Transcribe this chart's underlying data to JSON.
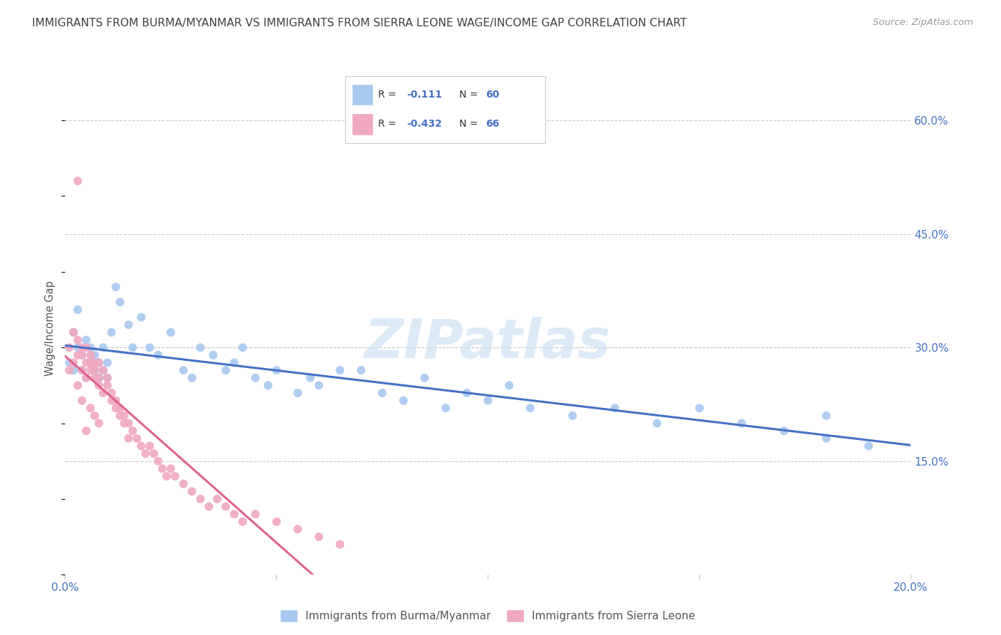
{
  "title": "IMMIGRANTS FROM BURMA/MYANMAR VS IMMIGRANTS FROM SIERRA LEONE WAGE/INCOME GAP CORRELATION CHART",
  "source": "Source: ZipAtlas.com",
  "ylabel": "Wage/Income Gap",
  "watermark": "ZIPatlas",
  "legend_blue_r": "-0.111",
  "legend_blue_n": "60",
  "legend_pink_r": "-0.432",
  "legend_pink_n": "66",
  "legend_blue_label": "Immigrants from Burma/Myanmar",
  "legend_pink_label": "Immigrants from Sierra Leone",
  "xlim": [
    0.0,
    0.2
  ],
  "ylim": [
    0.0,
    0.65
  ],
  "right_yticks": [
    0.15,
    0.3,
    0.45,
    0.6
  ],
  "right_yticklabels": [
    "15.0%",
    "30.0%",
    "45.0%",
    "60.0%"
  ],
  "blue_color": "#a8c8f0",
  "pink_color": "#f0a8c0",
  "blue_line_color": "#4472c4",
  "pink_line_color": "#e06090",
  "grid_color": "#c8c8c8",
  "title_color": "#404040",
  "axis_tick_color": "#4472c4",
  "background_color": "#ffffff",
  "blue_scatter_x": [
    0.001,
    0.002,
    0.002,
    0.003,
    0.003,
    0.004,
    0.004,
    0.005,
    0.005,
    0.006,
    0.006,
    0.007,
    0.007,
    0.008,
    0.008,
    0.009,
    0.009,
    0.01,
    0.01,
    0.011,
    0.012,
    0.013,
    0.015,
    0.016,
    0.018,
    0.02,
    0.022,
    0.025,
    0.028,
    0.03,
    0.032,
    0.035,
    0.038,
    0.04,
    0.042,
    0.045,
    0.048,
    0.05,
    0.055,
    0.058,
    0.06,
    0.065,
    0.07,
    0.075,
    0.08,
    0.085,
    0.09,
    0.095,
    0.1,
    0.105,
    0.11,
    0.12,
    0.13,
    0.14,
    0.15,
    0.16,
    0.17,
    0.18,
    0.18,
    0.19
  ],
  "blue_scatter_y": [
    0.28,
    0.32,
    0.27,
    0.3,
    0.35,
    0.29,
    0.27,
    0.26,
    0.31,
    0.28,
    0.3,
    0.27,
    0.29,
    0.26,
    0.28,
    0.3,
    0.27,
    0.28,
    0.26,
    0.32,
    0.38,
    0.36,
    0.33,
    0.3,
    0.34,
    0.3,
    0.29,
    0.32,
    0.27,
    0.26,
    0.3,
    0.29,
    0.27,
    0.28,
    0.3,
    0.26,
    0.25,
    0.27,
    0.24,
    0.26,
    0.25,
    0.27,
    0.27,
    0.24,
    0.23,
    0.26,
    0.22,
    0.24,
    0.23,
    0.25,
    0.22,
    0.21,
    0.22,
    0.2,
    0.22,
    0.2,
    0.19,
    0.18,
    0.21,
    0.17
  ],
  "pink_scatter_x": [
    0.001,
    0.001,
    0.002,
    0.002,
    0.003,
    0.003,
    0.003,
    0.004,
    0.004,
    0.004,
    0.005,
    0.005,
    0.005,
    0.006,
    0.006,
    0.006,
    0.007,
    0.007,
    0.007,
    0.008,
    0.008,
    0.008,
    0.009,
    0.009,
    0.01,
    0.01,
    0.011,
    0.011,
    0.012,
    0.012,
    0.013,
    0.013,
    0.014,
    0.014,
    0.015,
    0.015,
    0.016,
    0.017,
    0.018,
    0.019,
    0.02,
    0.021,
    0.022,
    0.023,
    0.024,
    0.025,
    0.026,
    0.028,
    0.03,
    0.032,
    0.034,
    0.036,
    0.038,
    0.04,
    0.042,
    0.045,
    0.05,
    0.055,
    0.06,
    0.065,
    0.006,
    0.007,
    0.008,
    0.004,
    0.005,
    0.003
  ],
  "pink_scatter_y": [
    0.3,
    0.27,
    0.32,
    0.28,
    0.31,
    0.29,
    0.52,
    0.3,
    0.27,
    0.29,
    0.28,
    0.26,
    0.3,
    0.29,
    0.27,
    0.28,
    0.26,
    0.28,
    0.27,
    0.26,
    0.25,
    0.28,
    0.24,
    0.27,
    0.26,
    0.25,
    0.24,
    0.23,
    0.23,
    0.22,
    0.22,
    0.21,
    0.21,
    0.2,
    0.2,
    0.18,
    0.19,
    0.18,
    0.17,
    0.16,
    0.17,
    0.16,
    0.15,
    0.14,
    0.13,
    0.14,
    0.13,
    0.12,
    0.11,
    0.1,
    0.09,
    0.1,
    0.09,
    0.08,
    0.07,
    0.08,
    0.07,
    0.06,
    0.05,
    0.04,
    0.22,
    0.21,
    0.2,
    0.23,
    0.19,
    0.25
  ]
}
